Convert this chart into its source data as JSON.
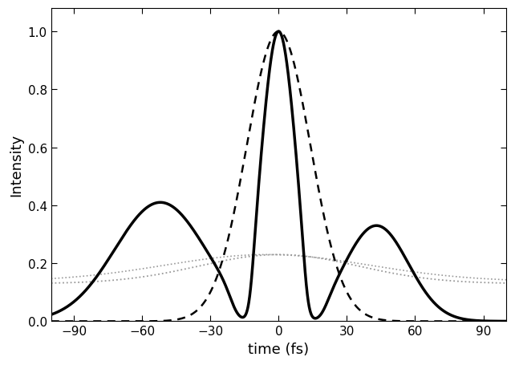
{
  "title": "",
  "xlabel": "time (fs)",
  "ylabel": "Intensity",
  "xlim": [
    -100,
    100
  ],
  "ylim": [
    0.0,
    1.08
  ],
  "yticks": [
    0.0,
    0.2,
    0.4,
    0.6,
    0.8,
    1.0
  ],
  "xticks": [
    -90,
    -60,
    -30,
    0,
    30,
    60,
    90
  ],
  "background_color": "#ffffff",
  "figsize": [
    6.42,
    4.56
  ],
  "dpi": 100
}
